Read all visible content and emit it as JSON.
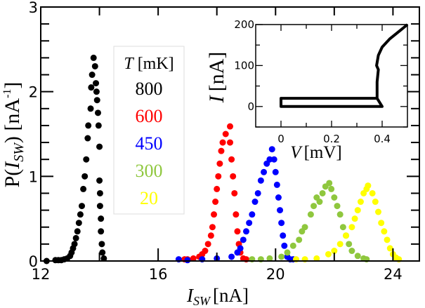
{
  "chart_data": [
    {
      "type": "scatter",
      "xlabel": "I_SW [nA]",
      "xlabel_main": "I",
      "xlabel_sub": "SW",
      "xlabel_unit": "[nA]",
      "ylabel_pre": "P(",
      "ylabel_main": "I",
      "ylabel_sub": "SW",
      "ylabel_post": ") [nA",
      "ylabel_sup": "-1",
      "ylabel_end": "]",
      "xlim": [
        12,
        24.9
      ],
      "ylim": [
        0,
        3
      ],
      "xticks": [
        12,
        16,
        20,
        24
      ],
      "yticks": [
        0,
        1,
        2,
        3
      ],
      "grid": false,
      "legend": {
        "title_var": "T",
        "title_unit": "[mK]",
        "placement": "top-left"
      },
      "series": [
        {
          "name": "800",
          "color": "#000000",
          "points": [
            [
              12.2,
              0
            ],
            [
              12.5,
              0.01
            ],
            [
              12.6,
              0.01
            ],
            [
              12.7,
              0.01
            ],
            [
              12.8,
              0.02
            ],
            [
              12.9,
              0.03
            ],
            [
              13.0,
              0.06
            ],
            [
              13.05,
              0.1
            ],
            [
              13.1,
              0.15
            ],
            [
              13.15,
              0.2
            ],
            [
              13.2,
              0.27
            ],
            [
              13.25,
              0.35
            ],
            [
              13.3,
              0.45
            ],
            [
              13.35,
              0.55
            ],
            [
              13.4,
              0.65
            ],
            [
              13.45,
              0.85
            ],
            [
              13.5,
              1.0
            ],
            [
              13.55,
              1.2
            ],
            [
              13.6,
              1.45
            ],
            [
              13.62,
              1.6
            ],
            [
              13.7,
              1.8
            ],
            [
              13.72,
              2.05
            ],
            [
              13.75,
              2.2
            ],
            [
              13.8,
              2.4
            ],
            [
              13.85,
              2.3
            ],
            [
              13.88,
              2.1
            ],
            [
              13.9,
              2.0
            ],
            [
              13.92,
              1.9
            ],
            [
              13.95,
              1.75
            ],
            [
              13.97,
              1.6
            ],
            [
              14.0,
              1.35
            ],
            [
              14.0,
              0.95
            ],
            [
              14.02,
              0.8
            ],
            [
              14.02,
              0.65
            ],
            [
              14.05,
              0.5
            ],
            [
              14.05,
              0.35
            ],
            [
              14.08,
              0.2
            ],
            [
              14.1,
              0.1
            ],
            [
              14.15,
              0.03
            ]
          ]
        },
        {
          "name": "600",
          "color": "#ff0000",
          "points": [
            [
              16.9,
              0.02
            ],
            [
              17.0,
              0.02
            ],
            [
              17.2,
              0.03
            ],
            [
              17.4,
              0.05
            ],
            [
              17.5,
              0.08
            ],
            [
              17.6,
              0.12
            ],
            [
              17.7,
              0.2
            ],
            [
              17.8,
              0.3
            ],
            [
              17.85,
              0.4
            ],
            [
              17.9,
              0.55
            ],
            [
              17.95,
              0.7
            ],
            [
              18.0,
              0.85
            ],
            [
              18.05,
              1.0
            ],
            [
              18.1,
              1.15
            ],
            [
              18.15,
              1.3
            ],
            [
              18.2,
              1.4
            ],
            [
              18.3,
              1.5
            ],
            [
              18.45,
              1.59
            ],
            [
              18.45,
              1.4
            ],
            [
              18.5,
              1.2
            ],
            [
              18.55,
              1.0
            ],
            [
              18.6,
              0.8
            ],
            [
              18.65,
              0.55
            ],
            [
              18.7,
              0.35
            ],
            [
              18.75,
              0.2
            ],
            [
              18.8,
              0.1
            ],
            [
              18.9,
              0.03
            ],
            [
              19.0,
              0.02
            ]
          ]
        },
        {
          "name": "450",
          "color": "#0000ff",
          "points": [
            [
              16.7,
              0.02
            ],
            [
              17.0,
              0.01
            ],
            [
              17.5,
              0.02
            ],
            [
              18.0,
              0.03
            ],
            [
              18.5,
              0.05
            ],
            [
              18.7,
              0.1
            ],
            [
              18.8,
              0.15
            ],
            [
              18.9,
              0.25
            ],
            [
              19.0,
              0.35
            ],
            [
              19.1,
              0.45
            ],
            [
              19.2,
              0.55
            ],
            [
              19.3,
              0.7
            ],
            [
              19.4,
              0.8
            ],
            [
              19.5,
              0.95
            ],
            [
              19.6,
              1.05
            ],
            [
              19.7,
              1.15
            ],
            [
              19.8,
              1.2
            ],
            [
              19.88,
              1.32
            ],
            [
              19.95,
              1.2
            ],
            [
              20.0,
              1.05
            ],
            [
              20.05,
              0.9
            ],
            [
              20.1,
              0.75
            ],
            [
              20.15,
              0.6
            ],
            [
              20.2,
              0.45
            ],
            [
              20.25,
              0.3
            ],
            [
              20.3,
              0.18
            ],
            [
              20.4,
              0.05
            ],
            [
              20.5,
              0.02
            ],
            [
              20.6,
              0.02
            ]
          ]
        },
        {
          "name": "300",
          "color": "#8fc73e",
          "points": [
            [
              19.2,
              0.02
            ],
            [
              19.5,
              0.02
            ],
            [
              19.8,
              0.03
            ],
            [
              20.2,
              0.05
            ],
            [
              20.4,
              0.1
            ],
            [
              20.6,
              0.18
            ],
            [
              20.8,
              0.25
            ],
            [
              20.9,
              0.35
            ],
            [
              21.0,
              0.4
            ],
            [
              21.2,
              0.55
            ],
            [
              21.3,
              0.65
            ],
            [
              21.4,
              0.75
            ],
            [
              21.5,
              0.7
            ],
            [
              21.6,
              0.8
            ],
            [
              21.7,
              0.88
            ],
            [
              21.83,
              0.92
            ],
            [
              21.9,
              0.85
            ],
            [
              22.0,
              0.75
            ],
            [
              22.1,
              0.65
            ],
            [
              22.2,
              0.55
            ],
            [
              22.3,
              0.4
            ],
            [
              22.4,
              0.3
            ],
            [
              22.5,
              0.2
            ],
            [
              22.6,
              0.12
            ],
            [
              22.8,
              0.06
            ],
            [
              23.0,
              0.03
            ],
            [
              23.1,
              0.02
            ]
          ]
        },
        {
          "name": "20",
          "color": "#ffff00",
          "points": [
            [
              20.7,
              0.02
            ],
            [
              21.0,
              0.02
            ],
            [
              21.4,
              0.03
            ],
            [
              21.8,
              0.08
            ],
            [
              22.0,
              0.12
            ],
            [
              22.2,
              0.2
            ],
            [
              22.4,
              0.3
            ],
            [
              22.6,
              0.4
            ],
            [
              22.7,
              0.5
            ],
            [
              22.8,
              0.6
            ],
            [
              22.9,
              0.7
            ],
            [
              23.0,
              0.8
            ],
            [
              23.1,
              0.85
            ],
            [
              23.15,
              0.89
            ],
            [
              23.3,
              0.8
            ],
            [
              23.4,
              0.7
            ],
            [
              23.5,
              0.58
            ],
            [
              23.6,
              0.45
            ],
            [
              23.7,
              0.35
            ],
            [
              23.8,
              0.25
            ],
            [
              23.9,
              0.15
            ],
            [
              24.0,
              0.08
            ],
            [
              24.1,
              0.04
            ],
            [
              24.2,
              0.02
            ]
          ]
        }
      ]
    },
    {
      "type": "line",
      "xlabel_main": "V",
      "xlabel_unit": "[mV]",
      "ylabel_main": "I",
      "ylabel_unit": "[nA]",
      "xlim": [
        -0.1,
        0.5
      ],
      "ylim": [
        -50,
        200
      ],
      "xticks": [
        0,
        0.2,
        0.4
      ],
      "yticks": [
        0,
        100,
        200
      ],
      "series": [
        {
          "color": "#000000",
          "points": [
            [
              0,
              0
            ],
            [
              0.4,
              0
            ],
            [
              0.38,
              20
            ],
            [
              0,
              20
            ],
            [
              0,
              0
            ],
            [
              0,
              20
            ],
            [
              0.38,
              20
            ],
            [
              0.38,
              60
            ],
            [
              0.385,
              90
            ],
            [
              0.378,
              100
            ],
            [
              0.385,
              125
            ],
            [
              0.4,
              145
            ],
            [
              0.43,
              165
            ],
            [
              0.47,
              185
            ],
            [
              0.5,
              200
            ]
          ]
        }
      ]
    }
  ]
}
